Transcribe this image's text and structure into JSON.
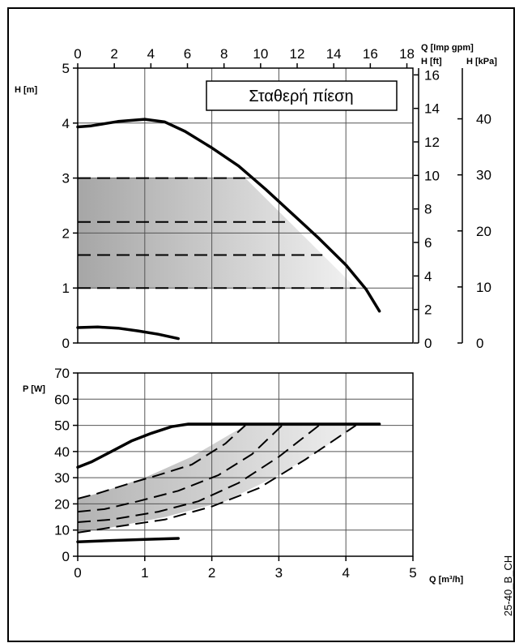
{
  "chart_data": [
    {
      "type": "line",
      "panel": "head",
      "x_unit_label": "Q [m³/h]",
      "xlim": [
        0,
        5
      ],
      "ylim": [
        0,
        5
      ],
      "y_label": "H [m]",
      "y_ticks": [
        "0",
        "1",
        "2",
        "3",
        "4",
        "5"
      ],
      "top_axis": {
        "label": "Q [Imp gpm]",
        "ticks": [
          "0",
          "2",
          "4",
          "6",
          "8",
          "10",
          "12",
          "14",
          "16",
          "18"
        ]
      },
      "right_axis_ft": {
        "label": "H [ft]",
        "ticks": [
          "0",
          "2",
          "4",
          "6",
          "8",
          "10",
          "12",
          "14",
          "16"
        ]
      },
      "right_axis_kpa": {
        "label": "H [kPa]",
        "ticks": [
          "0",
          "10",
          "20",
          "30",
          "40"
        ]
      },
      "legend": "Σταθερή πίεση",
      "grid": true,
      "shaded_region": {
        "x": [
          0,
          2.5,
          4.15,
          0
        ],
        "y": [
          3,
          3,
          1,
          1
        ]
      },
      "series": [
        {
          "style": "solid",
          "x": [
            0,
            0.2,
            0.6,
            1.0,
            1.3,
            1.6,
            2.0,
            2.4,
            2.8,
            3.2,
            3.6,
            4.0,
            4.3,
            4.5
          ],
          "y": [
            3.93,
            3.95,
            4.03,
            4.07,
            4.02,
            3.85,
            3.55,
            3.22,
            2.8,
            2.35,
            1.9,
            1.42,
            0.98,
            0.58
          ]
        },
        {
          "style": "solid",
          "x": [
            0,
            0.3,
            0.6,
            0.9,
            1.2,
            1.5
          ],
          "y": [
            0.28,
            0.29,
            0.27,
            0.22,
            0.16,
            0.08
          ]
        },
        {
          "style": "dashed",
          "x": [
            0,
            2.5
          ],
          "y": [
            3,
            3
          ]
        },
        {
          "style": "dashed",
          "x": [
            0,
            3.15
          ],
          "y": [
            2.2,
            2.2
          ]
        },
        {
          "style": "dashed",
          "x": [
            0,
            3.65
          ],
          "y": [
            1.6,
            1.6
          ]
        },
        {
          "style": "dashed",
          "x": [
            0,
            4.15
          ],
          "y": [
            1,
            1
          ]
        }
      ]
    },
    {
      "type": "line",
      "panel": "power",
      "x_label": "Q [m³/h]",
      "xlim": [
        0,
        5
      ],
      "x_ticks": [
        "0",
        "1",
        "2",
        "3",
        "4",
        "5"
      ],
      "ylim": [
        0,
        70
      ],
      "y_label": "P [W]",
      "y_ticks": [
        "0",
        "10",
        "20",
        "30",
        "40",
        "50",
        "60",
        "70"
      ],
      "grid": true,
      "shaded_region": {
        "x": [
          0,
          0.3,
          1.0,
          1.7,
          2.5,
          3.5,
          4.15,
          3.7,
          3.0,
          2.2,
          1.3,
          0.5,
          0
        ],
        "y": [
          22,
          24,
          30,
          38,
          50,
          50,
          50,
          42,
          31,
          21,
          15,
          11,
          9
        ]
      },
      "series": [
        {
          "style": "solid",
          "x": [
            0,
            0.2,
            0.5,
            0.8,
            1.1,
            1.4,
            1.65,
            2.5,
            3.5,
            4.5
          ],
          "y": [
            34,
            36,
            40,
            44,
            47,
            49.5,
            50.5,
            50.5,
            50.5,
            50.5
          ]
        },
        {
          "style": "solid",
          "x": [
            0,
            0.5,
            1.0,
            1.5
          ],
          "y": [
            5.5,
            6,
            6.4,
            6.8
          ]
        },
        {
          "style": "dashed",
          "x": [
            0,
            0.3,
            0.8,
            1.2,
            1.7,
            2.2,
            2.5
          ],
          "y": [
            22,
            24,
            28,
            31,
            35,
            43,
            50
          ]
        },
        {
          "style": "dashed",
          "x": [
            0,
            0.4,
            0.9,
            1.5,
            2.1,
            2.6,
            3.05
          ],
          "y": [
            17,
            18,
            21,
            25,
            31,
            39,
            50
          ]
        },
        {
          "style": "dashed",
          "x": [
            0,
            0.5,
            1.2,
            1.8,
            2.4,
            3.0,
            3.6
          ],
          "y": [
            13,
            14,
            17,
            21,
            28,
            38,
            50
          ]
        },
        {
          "style": "dashed",
          "x": [
            0,
            0.5,
            1.3,
            2.0,
            2.7,
            3.4,
            4.15
          ],
          "y": [
            9,
            11,
            14,
            19,
            26,
            37,
            50
          ]
        }
      ]
    }
  ],
  "footer_code": "25-40_B_CH"
}
